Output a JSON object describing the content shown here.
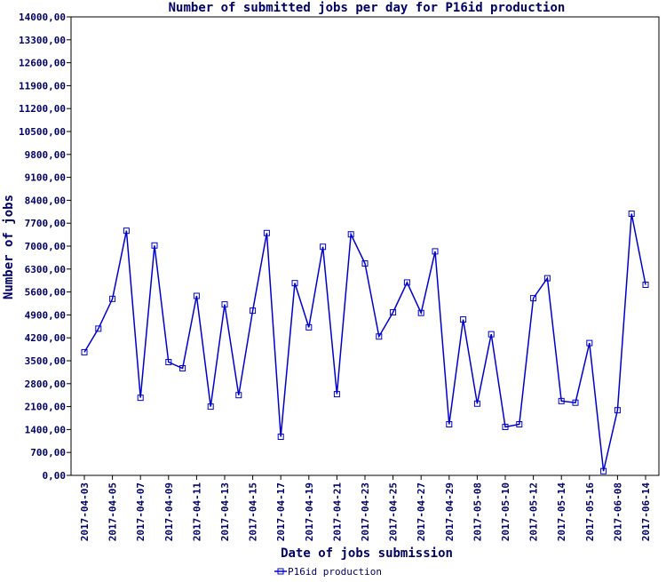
{
  "chart_data": {
    "type": "line",
    "title": "Number of submitted jobs per day for P16id production",
    "xlabel": "Date of jobs submission",
    "ylabel": "Number of jobs",
    "ylim": [
      0,
      14000
    ],
    "y_ticks": [
      "0,00",
      "700,00",
      "1400,00",
      "2100,00",
      "2800,00",
      "3500,00",
      "4200,00",
      "4900,00",
      "5600,00",
      "6300,00",
      "7000,00",
      "7700,00",
      "8400,00",
      "9100,00",
      "9800,00",
      "10500,00",
      "11200,00",
      "11900,00",
      "12600,00",
      "13300,00",
      "14000,00"
    ],
    "x_tick_labels": [
      {
        "index": 0,
        "label": "2017-04-03"
      },
      {
        "index": 2,
        "label": "2017-04-05"
      },
      {
        "index": 4,
        "label": "2017-04-07"
      },
      {
        "index": 6,
        "label": "2017-04-09"
      },
      {
        "index": 8,
        "label": "2017-04-11"
      },
      {
        "index": 10,
        "label": "2017-04-13"
      },
      {
        "index": 12,
        "label": "2017-04-15"
      },
      {
        "index": 14,
        "label": "2017-04-17"
      },
      {
        "index": 16,
        "label": "2017-04-19"
      },
      {
        "index": 18,
        "label": "2017-04-21"
      },
      {
        "index": 20,
        "label": "2017-04-23"
      },
      {
        "index": 22,
        "label": "2017-04-25"
      },
      {
        "index": 24,
        "label": "2017-04-27"
      },
      {
        "index": 26,
        "label": "2017-04-29"
      },
      {
        "index": 28,
        "label": "2017-05-08"
      },
      {
        "index": 30,
        "label": "2017-05-10"
      },
      {
        "index": 32,
        "label": "2017-05-12"
      },
      {
        "index": 34,
        "label": "2017-05-14"
      },
      {
        "index": 36,
        "label": "2017-05-16"
      },
      {
        "index": 38,
        "label": "2017-06-08"
      },
      {
        "index": 40,
        "label": "2017-06-14"
      }
    ],
    "grid": false,
    "legend_position": "bottom-center",
    "series": [
      {
        "name": "P16id production",
        "color": "#0000cc",
        "values": [
          3760,
          4480,
          5390,
          7470,
          2370,
          7020,
          3460,
          3270,
          5480,
          2100,
          5220,
          2450,
          5030,
          7400,
          1180,
          5870,
          4520,
          6980,
          2480,
          7360,
          6470,
          4240,
          4980,
          5890,
          4960,
          6840,
          1560,
          4760,
          2190,
          4310,
          1480,
          1560,
          5410,
          6020,
          2270,
          2220,
          4040,
          130,
          1990,
          7990,
          5820
        ]
      }
    ]
  }
}
